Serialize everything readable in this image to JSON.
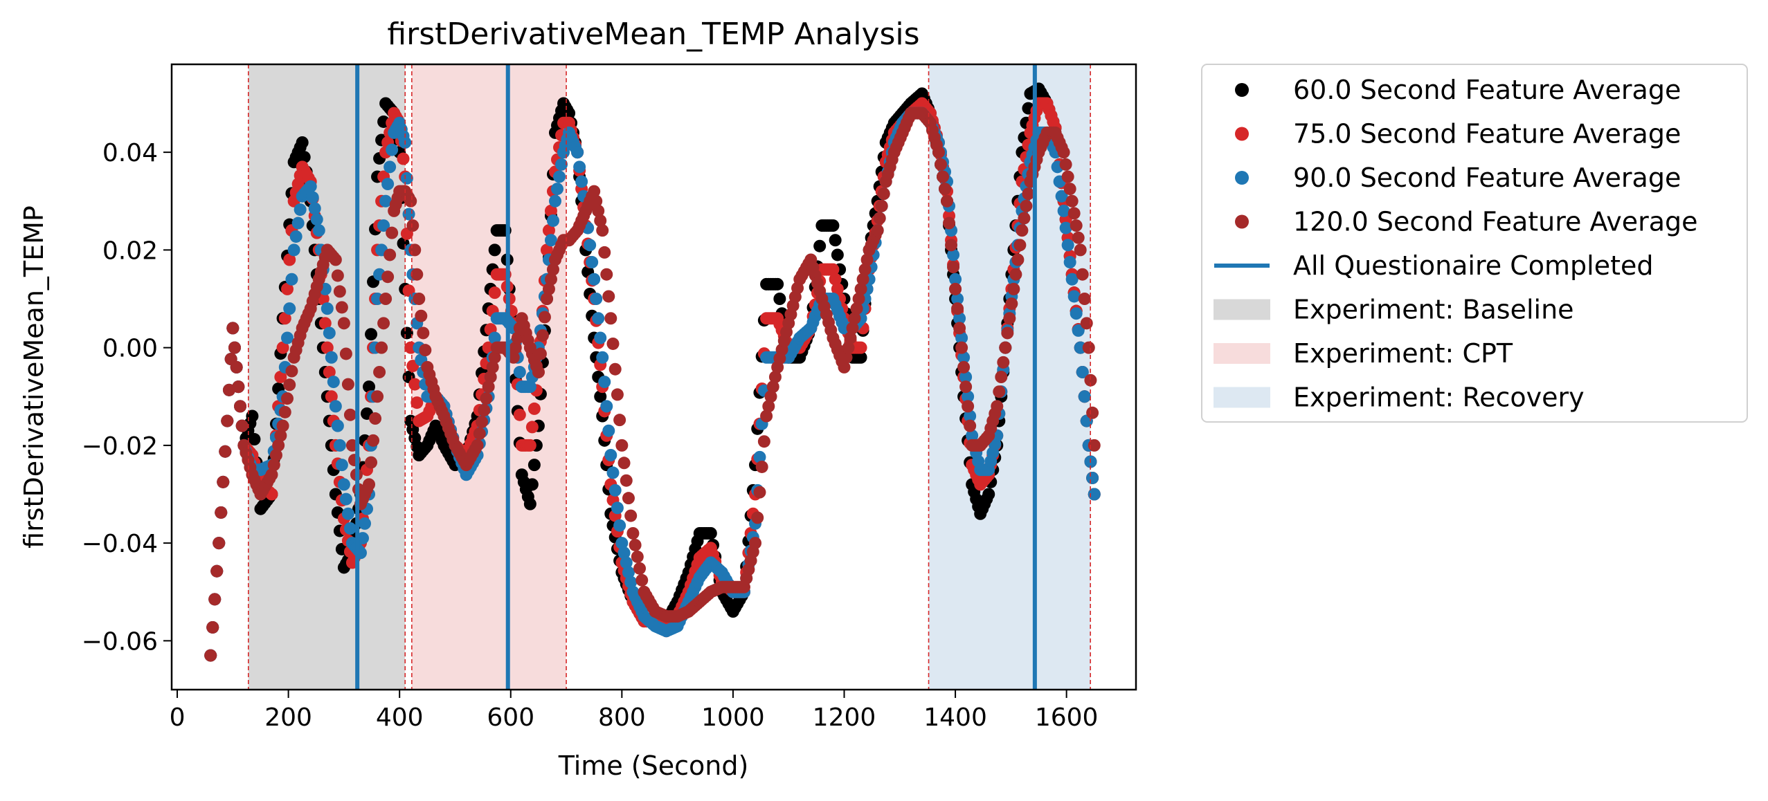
{
  "chart_data": {
    "type": "scatter",
    "title": "firstDerivativeMean_TEMP Analysis",
    "xlabel": "Time (Second)",
    "ylabel": "firstDerivativeMean_TEMP",
    "xlim": [
      -10,
      1725
    ],
    "ylim": [
      -0.07,
      0.058
    ],
    "xticks": [
      0,
      200,
      400,
      600,
      800,
      1000,
      1200,
      1400,
      1600
    ],
    "xtick_labels": [
      "0",
      "200",
      "400",
      "600",
      "800",
      "1000",
      "1200",
      "1400",
      "1600"
    ],
    "yticks": [
      -0.06,
      -0.04,
      -0.02,
      0.0,
      0.02,
      0.04
    ],
    "ytick_labels": [
      "−0.06",
      "−0.04",
      "−0.02",
      "0.00",
      "0.02",
      "0.04"
    ],
    "grid": false,
    "legend_position": "outside-right",
    "shaded_regions": [
      {
        "name": "Experiment: Baseline",
        "x0": 128,
        "x1": 410,
        "color": "#d8d8d8"
      },
      {
        "name": "Experiment: CPT",
        "x0": 422,
        "x1": 700,
        "color": "#f7dcdc"
      },
      {
        "name": "Experiment: Recovery",
        "x0": 1352,
        "x1": 1643,
        "color": "#dde8f2"
      }
    ],
    "boundary_lines": [
      128,
      410,
      422,
      700,
      1352,
      1643
    ],
    "boundary_color": "#d62728",
    "questionnaire_lines": {
      "name": "All Questionaire Completed",
      "x": [
        324,
        595,
        1543
      ],
      "color": "#1f77b4"
    },
    "series": [
      {
        "name": "60.0 Second Feature Average",
        "color": "#000000",
        "x": [
          60,
          75,
          90,
          100,
          110,
          120,
          135,
          150,
          170,
          190,
          210,
          225,
          240,
          255,
          270,
          285,
          300,
          315,
          330,
          345,
          360,
          375,
          390,
          400,
          410,
          420,
          435,
          450,
          465,
          480,
          500,
          520,
          540,
          560,
          575,
          590,
          605,
          620,
          635,
          650,
          665,
          680,
          695,
          705,
          720,
          735,
          750,
          765,
          780,
          800,
          820,
          840,
          860,
          880,
          900,
          920,
          940,
          960,
          980,
          1000,
          1020,
          1040,
          1060,
          1080,
          1100,
          1120,
          1140,
          1160,
          1180,
          1200,
          1215,
          1230,
          1245,
          1260,
          1275,
          1290,
          1305,
          1320,
          1340,
          1355,
          1370,
          1385,
          1400,
          1415,
          1430,
          1445,
          1460,
          1475,
          1490,
          1505,
          1520,
          1535,
          1550,
          1565,
          1580,
          1595,
          1610,
          1625,
          1640,
          1650
        ],
        "y": [
          -0.063,
          -0.04,
          -0.015,
          0.004,
          -0.008,
          -0.02,
          -0.014,
          -0.033,
          -0.03,
          0.006,
          0.038,
          0.042,
          0.03,
          0.01,
          -0.01,
          -0.03,
          -0.045,
          -0.042,
          -0.03,
          -0.008,
          0.035,
          0.05,
          0.048,
          0.04,
          0.012,
          -0.015,
          -0.022,
          -0.02,
          -0.016,
          -0.02,
          -0.024,
          -0.022,
          -0.014,
          0.008,
          0.024,
          0.024,
          0.0,
          -0.026,
          -0.032,
          -0.016,
          0.01,
          0.044,
          0.05,
          0.048,
          0.04,
          0.02,
          0.002,
          -0.014,
          -0.034,
          -0.046,
          -0.052,
          -0.056,
          -0.056,
          -0.056,
          -0.052,
          -0.046,
          -0.038,
          -0.038,
          -0.05,
          -0.054,
          -0.05,
          -0.024,
          0.013,
          0.013,
          -0.002,
          -0.002,
          0.004,
          0.025,
          0.025,
          0.01,
          -0.002,
          -0.002,
          0.02,
          0.03,
          0.042,
          0.046,
          0.048,
          0.05,
          0.052,
          0.048,
          0.04,
          0.03,
          0.01,
          -0.01,
          -0.028,
          -0.034,
          -0.03,
          -0.02,
          0.0,
          0.02,
          0.04,
          0.052,
          0.053,
          0.05,
          0.045,
          0.03,
          0.015,
          0.0,
          -0.02,
          -0.03
        ]
      },
      {
        "name": "75.0 Second Feature Average",
        "color": "#d62728",
        "x": [
          60,
          75,
          90,
          100,
          110,
          120,
          135,
          150,
          170,
          190,
          210,
          225,
          240,
          255,
          270,
          285,
          300,
          315,
          330,
          345,
          360,
          375,
          390,
          400,
          410,
          420,
          435,
          450,
          465,
          480,
          500,
          520,
          540,
          560,
          575,
          590,
          605,
          620,
          635,
          650,
          665,
          680,
          695,
          705,
          720,
          735,
          750,
          765,
          780,
          800,
          820,
          840,
          860,
          880,
          900,
          920,
          940,
          960,
          980,
          1000,
          1020,
          1040,
          1060,
          1080,
          1100,
          1120,
          1140,
          1160,
          1180,
          1200,
          1215,
          1230,
          1245,
          1260,
          1275,
          1290,
          1305,
          1320,
          1340,
          1355,
          1370,
          1385,
          1400,
          1415,
          1430,
          1445,
          1460,
          1475,
          1490,
          1505,
          1520,
          1535,
          1550,
          1565,
          1580,
          1595,
          1610,
          1625,
          1640,
          1650
        ],
        "y": [
          -0.063,
          -0.04,
          -0.015,
          0.004,
          -0.008,
          -0.02,
          -0.022,
          -0.028,
          -0.03,
          0.0,
          0.03,
          0.037,
          0.034,
          0.02,
          0.0,
          -0.02,
          -0.035,
          -0.044,
          -0.04,
          -0.02,
          0.02,
          0.04,
          0.048,
          0.046,
          0.035,
          0.0,
          -0.015,
          -0.014,
          -0.01,
          -0.012,
          -0.02,
          -0.022,
          -0.016,
          0.0,
          0.015,
          0.015,
          0.005,
          -0.02,
          -0.02,
          -0.005,
          0.02,
          0.036,
          0.046,
          0.046,
          0.04,
          0.025,
          0.01,
          -0.008,
          -0.028,
          -0.044,
          -0.052,
          -0.056,
          -0.056,
          -0.058,
          -0.055,
          -0.05,
          -0.043,
          -0.041,
          -0.048,
          -0.05,
          -0.05,
          -0.03,
          0.006,
          0.006,
          0.0,
          0.0,
          0.004,
          0.016,
          0.016,
          0.006,
          0.0,
          0.0,
          0.016,
          0.026,
          0.038,
          0.044,
          0.046,
          0.048,
          0.05,
          0.048,
          0.042,
          0.032,
          0.012,
          -0.006,
          -0.024,
          -0.028,
          -0.026,
          -0.018,
          0.0,
          0.016,
          0.034,
          0.044,
          0.05,
          0.05,
          0.045,
          0.03,
          0.015,
          0.0,
          -0.02,
          -0.03
        ]
      },
      {
        "name": "90.0 Second Feature Average",
        "color": "#1f77b4",
        "x": [
          60,
          75,
          90,
          100,
          110,
          120,
          135,
          150,
          170,
          190,
          210,
          225,
          240,
          255,
          270,
          285,
          300,
          315,
          330,
          345,
          360,
          375,
          390,
          400,
          410,
          420,
          435,
          450,
          465,
          480,
          500,
          520,
          540,
          560,
          575,
          590,
          605,
          620,
          635,
          650,
          665,
          680,
          695,
          705,
          720,
          735,
          750,
          765,
          780,
          800,
          820,
          840,
          860,
          880,
          900,
          920,
          940,
          960,
          980,
          1000,
          1020,
          1040,
          1060,
          1080,
          1100,
          1120,
          1140,
          1160,
          1180,
          1200,
          1215,
          1230,
          1245,
          1260,
          1275,
          1290,
          1305,
          1320,
          1340,
          1355,
          1370,
          1385,
          1400,
          1415,
          1430,
          1445,
          1460,
          1475,
          1490,
          1505,
          1520,
          1535,
          1550,
          1565,
          1580,
          1595,
          1610,
          1625,
          1640,
          1650
        ],
        "y": [
          -0.063,
          -0.04,
          -0.015,
          0.004,
          -0.008,
          -0.02,
          -0.025,
          -0.025,
          -0.024,
          -0.01,
          0.02,
          0.031,
          0.033,
          0.024,
          0.008,
          -0.012,
          -0.028,
          -0.04,
          -0.042,
          -0.03,
          0.01,
          0.03,
          0.044,
          0.046,
          0.042,
          0.02,
          0.0,
          -0.01,
          -0.01,
          -0.012,
          -0.02,
          -0.026,
          -0.022,
          -0.01,
          0.006,
          0.006,
          0.004,
          -0.008,
          -0.008,
          0.0,
          0.014,
          0.03,
          0.04,
          0.044,
          0.04,
          0.028,
          0.014,
          -0.002,
          -0.022,
          -0.04,
          -0.05,
          -0.055,
          -0.057,
          -0.058,
          -0.057,
          -0.052,
          -0.047,
          -0.044,
          -0.046,
          -0.05,
          -0.05,
          -0.036,
          -0.002,
          -0.002,
          -0.002,
          0.002,
          0.004,
          0.01,
          0.01,
          0.004,
          0.004,
          0.006,
          0.014,
          0.024,
          0.034,
          0.042,
          0.046,
          0.048,
          0.048,
          0.046,
          0.042,
          0.034,
          0.014,
          -0.002,
          -0.018,
          -0.025,
          -0.025,
          -0.018,
          0.0,
          0.014,
          0.028,
          0.038,
          0.044,
          0.044,
          0.04,
          0.028,
          0.014,
          0.0,
          -0.02,
          -0.03
        ]
      },
      {
        "name": "120.0 Second Feature Average",
        "color": "#a52a2a",
        "x": [
          60,
          75,
          90,
          100,
          110,
          120,
          135,
          150,
          170,
          190,
          210,
          225,
          240,
          255,
          270,
          285,
          300,
          315,
          330,
          345,
          360,
          375,
          390,
          400,
          410,
          420,
          435,
          450,
          465,
          480,
          500,
          520,
          540,
          560,
          575,
          590,
          605,
          620,
          635,
          650,
          665,
          680,
          695,
          705,
          720,
          735,
          750,
          765,
          780,
          800,
          820,
          840,
          860,
          880,
          900,
          920,
          940,
          960,
          980,
          1000,
          1020,
          1040,
          1060,
          1080,
          1100,
          1120,
          1140,
          1160,
          1180,
          1200,
          1215,
          1230,
          1245,
          1260,
          1275,
          1290,
          1305,
          1320,
          1340,
          1355,
          1370,
          1385,
          1400,
          1415,
          1430,
          1445,
          1460,
          1475,
          1490,
          1505,
          1520,
          1535,
          1550,
          1565,
          1580,
          1595,
          1610,
          1625,
          1640,
          1650
        ],
        "y": [
          -0.063,
          -0.04,
          -0.015,
          0.004,
          -0.008,
          -0.02,
          -0.026,
          -0.03,
          -0.026,
          -0.016,
          -0.002,
          0.004,
          0.008,
          0.014,
          0.02,
          0.018,
          0.005,
          -0.02,
          -0.032,
          -0.028,
          -0.01,
          0.01,
          0.028,
          0.032,
          0.032,
          0.03,
          0.01,
          -0.004,
          -0.01,
          -0.014,
          -0.02,
          -0.024,
          -0.02,
          -0.008,
          0.0,
          0.0,
          -0.002,
          0.006,
          0.0,
          -0.005,
          0.01,
          0.018,
          0.022,
          0.022,
          0.024,
          0.028,
          0.032,
          0.024,
          0.006,
          -0.02,
          -0.038,
          -0.05,
          -0.054,
          -0.055,
          -0.055,
          -0.054,
          -0.052,
          -0.05,
          -0.049,
          -0.049,
          -0.049,
          -0.04,
          -0.014,
          -0.004,
          0.005,
          0.014,
          0.018,
          0.01,
          0.002,
          -0.004,
          0.004,
          0.012,
          0.02,
          0.024,
          0.034,
          0.04,
          0.044,
          0.048,
          0.048,
          0.046,
          0.04,
          0.03,
          0.012,
          -0.004,
          -0.02,
          -0.02,
          -0.018,
          -0.012,
          0.0,
          0.012,
          0.024,
          0.034,
          0.04,
          0.044,
          0.044,
          0.04,
          0.03,
          0.02,
          0.0,
          -0.02
        ]
      }
    ]
  }
}
